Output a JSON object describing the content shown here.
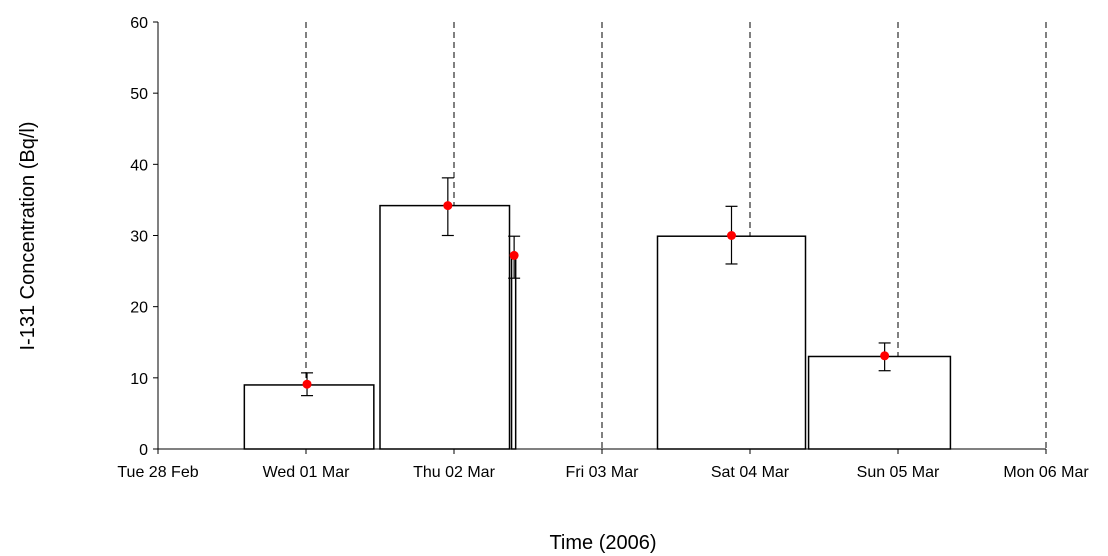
{
  "chart_data": {
    "type": "bar",
    "title": "",
    "xlabel": "Time (2006)",
    "ylabel": "I-131 Concentration (Bq/l)",
    "ylim": [
      0,
      60
    ],
    "yticks": [
      0,
      10,
      20,
      30,
      40,
      50,
      60
    ],
    "x_ticks": [
      {
        "date": "2006-02-28",
        "label": "Tue 28 Feb"
      },
      {
        "date": "2006-03-01",
        "label": "Wed 01 Mar"
      },
      {
        "date": "2006-03-02",
        "label": "Thu 02 Mar"
      },
      {
        "date": "2006-03-03",
        "label": "Fri 03 Mar"
      },
      {
        "date": "2006-03-04",
        "label": "Sat 04 Mar"
      },
      {
        "date": "2006-03-05",
        "label": "Sun 05 Mar"
      },
      {
        "date": "2006-03-06",
        "label": "Mon 06 Mar"
      }
    ],
    "vertical_gridlines": "dashed, at each day",
    "bars": [
      {
        "start": "2006-02-28T14:00",
        "end": "2006-03-01T11:00",
        "value": 9
      },
      {
        "start": "2006-03-01T12:00",
        "end": "2006-03-02T09:00",
        "value": 34.2
      },
      {
        "start": "2006-03-02T09:20",
        "end": "2006-03-02T10:00",
        "value": 27.2
      },
      {
        "start": "2006-03-02T11:00",
        "end": "2006-03-03T09:00",
        "value": 0
      },
      {
        "start": "2006-03-03T09:00",
        "end": "2006-03-04T09:00",
        "value": 29.9
      },
      {
        "start": "2006-03-04T09:30",
        "end": "2006-03-05T08:30",
        "value": 13
      }
    ],
    "points": [
      {
        "x": "2006-03-01T00:10",
        "y": 9.1,
        "error_low": 7.5,
        "error_high": 10.7
      },
      {
        "x": "2006-03-01T23:00",
        "y": 34.2,
        "error_low": 30,
        "error_high": 38.1
      },
      {
        "x": "2006-03-02T09:45",
        "y": 27.2,
        "error_low": 24,
        "error_high": 29.9
      },
      {
        "x": "2006-03-03T21:00",
        "y": 30,
        "error_low": 26,
        "error_high": 34.1
      },
      {
        "x": "2006-03-04T21:50",
        "y": 13.1,
        "error_low": 11,
        "error_high": 14.9
      }
    ],
    "colors": {
      "bar_stroke": "#000000",
      "bar_fill": "#ffffff",
      "point": "#ff0000"
    }
  }
}
